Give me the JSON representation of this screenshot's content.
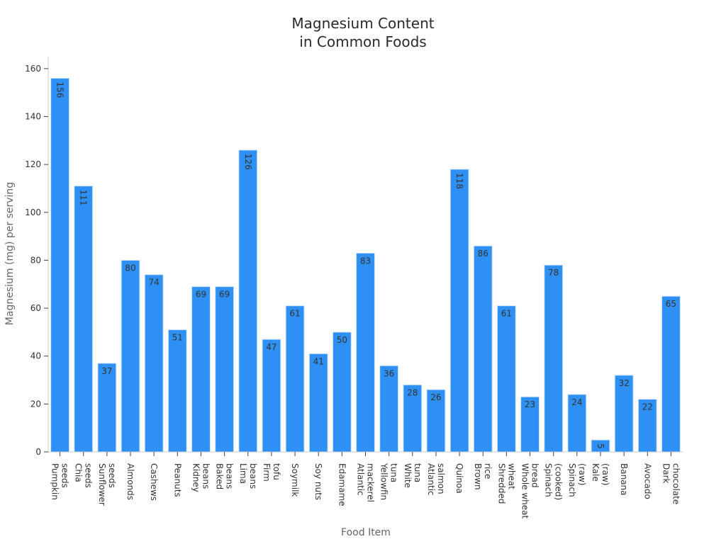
{
  "chart_data": {
    "type": "bar",
    "title_lines": [
      "Magnesium Content",
      "in Common Foods"
    ],
    "xlabel": "Food Item",
    "ylabel": "Magnesium (mg) per serving",
    "ylim": [
      0,
      165
    ],
    "yticks": [
      0,
      20,
      40,
      60,
      80,
      100,
      120,
      140,
      160
    ],
    "grid": false,
    "bar_color": "#2e8ff5",
    "bar_edge_color": "#cfe4fb",
    "categories": [
      [
        "Pumpkin",
        "seeds"
      ],
      [
        "Chia",
        "seeds"
      ],
      [
        "Sunflower",
        "seeds"
      ],
      [
        "Almonds"
      ],
      [
        "Cashews"
      ],
      [
        "Peanuts"
      ],
      [
        "Kidney",
        "beans"
      ],
      [
        "Baked",
        "beans"
      ],
      [
        "Lima",
        "beans"
      ],
      [
        "Firm",
        "tofu"
      ],
      [
        "Soymilk"
      ],
      [
        "Soy nuts"
      ],
      [
        "Edamame"
      ],
      [
        "Atlantic",
        "mackerel"
      ],
      [
        "Yellowfin",
        "tuna"
      ],
      [
        "White",
        "tuna"
      ],
      [
        "Atlantic",
        "salmon"
      ],
      [
        "Quinoa"
      ],
      [
        "Brown",
        "rice"
      ],
      [
        "Shredded",
        "wheat"
      ],
      [
        "Whole wheat",
        "bread"
      ],
      [
        "Spinach",
        "(cooked)"
      ],
      [
        "Spinach",
        "(raw)"
      ],
      [
        "Kale",
        "(raw)"
      ],
      [
        "Banana"
      ],
      [
        "Avocado"
      ],
      [
        "Dark",
        "chocolate"
      ]
    ],
    "values": [
      156,
      111,
      37,
      80,
      74,
      51,
      69,
      69,
      126,
      47,
      61,
      41,
      50,
      83,
      36,
      28,
      26,
      118,
      86,
      61,
      23,
      78,
      24,
      5,
      32,
      22,
      65
    ],
    "rotated_value_labels": [
      156,
      111,
      126,
      118,
      5
    ]
  }
}
